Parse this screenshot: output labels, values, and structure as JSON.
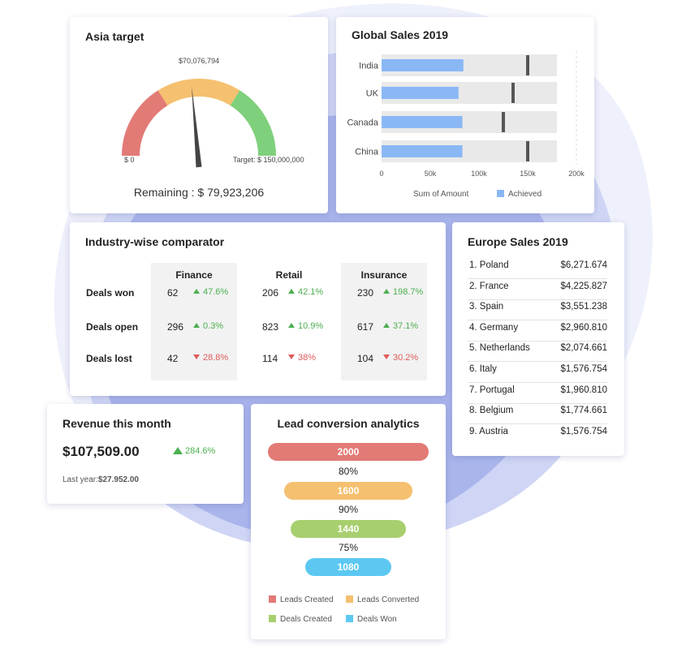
{
  "asia_target": {
    "title": "Asia target",
    "current_value": "$70,076,794",
    "min_label": "$ 0",
    "target_label": "Target: $ 150,000,000",
    "remaining": "Remaining : $ 79,923,206",
    "colors": {
      "red": "#e27a76",
      "orange": "#f5c06f",
      "green": "#7fd07c"
    }
  },
  "global_sales": {
    "title": "Global Sales 2019",
    "chart_data": {
      "type": "bar",
      "orientation": "horizontal",
      "categories": [
        "India",
        "UK",
        "Canada",
        "China"
      ],
      "series": [
        {
          "name": "Achieved",
          "values": [
            84000,
            79000,
            83000,
            83000
          ]
        }
      ],
      "target_markers": [
        150000,
        135000,
        125000,
        150000
      ],
      "xlim": [
        0,
        200000
      ],
      "x_ticks": [
        "0",
        "50k",
        "100k",
        "150k",
        "200k"
      ],
      "xlabel": "Sum of Amount",
      "legend": "bottom",
      "colors": {
        "achieved": "#8ab8f5",
        "background": "#e9e9e9",
        "marker": "#555555"
      }
    }
  },
  "industry": {
    "title": "Industry-wise comparator",
    "columns": [
      "Finance",
      "Retail",
      "Insurance"
    ],
    "rows": [
      {
        "label": "Deals won",
        "cells": [
          {
            "value": "62",
            "change": "47.6%",
            "dir": "up"
          },
          {
            "value": "206",
            "change": "42.1%",
            "dir": "up"
          },
          {
            "value": "230",
            "change": "198.7%",
            "dir": "up"
          }
        ]
      },
      {
        "label": "Deals open",
        "cells": [
          {
            "value": "296",
            "change": "0.3%",
            "dir": "up"
          },
          {
            "value": "823",
            "change": "10.9%",
            "dir": "up"
          },
          {
            "value": "617",
            "change": "37.1%",
            "dir": "up"
          }
        ]
      },
      {
        "label": "Deals lost",
        "cells": [
          {
            "value": "42",
            "change": "28.8%",
            "dir": "down"
          },
          {
            "value": "114",
            "change": "38%",
            "dir": "down"
          },
          {
            "value": "104",
            "change": "30.2%",
            "dir": "down"
          }
        ]
      }
    ]
  },
  "europe": {
    "title": "Europe Sales 2019",
    "items": [
      {
        "name": "1. Poland",
        "value": "$6,271.674"
      },
      {
        "name": "2. France",
        "value": "$4,225.827"
      },
      {
        "name": "3. Spain",
        "value": "$3,551.238"
      },
      {
        "name": "4. Germany",
        "value": "$2,960.810"
      },
      {
        "name": "5. Netherlands",
        "value": "$2,074.661"
      },
      {
        "name": "6. Italy",
        "value": "$1,576.754"
      },
      {
        "name": "7. Portugal",
        "value": "$1,960.810"
      },
      {
        "name": "8. Belgium",
        "value": "$1,774.661"
      },
      {
        "name": "9. Austria",
        "value": "$1,576.754"
      }
    ]
  },
  "revenue": {
    "title": "Revenue this month",
    "amount": "$107,509.00",
    "change": "284.6%",
    "last_year_label": "Last year:",
    "last_year_value": "$27.952.00"
  },
  "funnel": {
    "title": "Lead conversion analytics",
    "chart_data": {
      "type": "funnel",
      "stages": [
        {
          "name": "Leads Created",
          "value": 2000,
          "label": "2000",
          "color": "#e27a76"
        },
        {
          "name": "Leads Converted",
          "value": 1600,
          "label": "1600",
          "color": "#f5c06f"
        },
        {
          "name": "Deals Created",
          "value": 1440,
          "label": "1440",
          "color": "#a8cf6e"
        },
        {
          "name": "Deals Won",
          "value": 1080,
          "label": "1080",
          "color": "#5cc8f2"
        }
      ],
      "conversion_rates": [
        "80%",
        "90%",
        "75%"
      ],
      "legend": "bottom"
    }
  }
}
